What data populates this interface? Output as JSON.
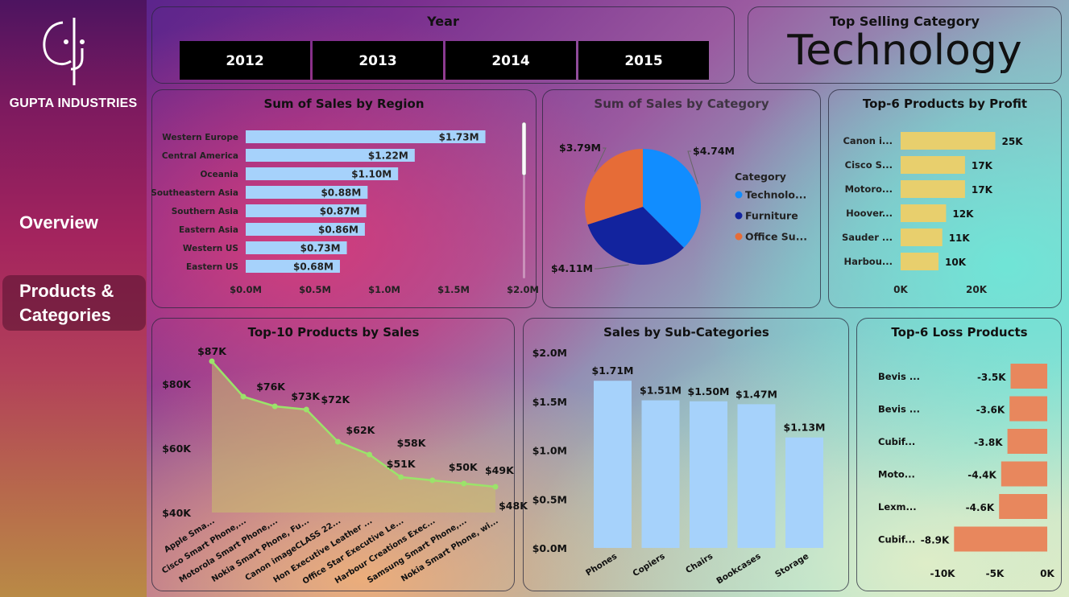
{
  "sidebar": {
    "brand": "GUPTA INDUSTRIES",
    "nav": [
      {
        "label": "Overview"
      },
      {
        "label_line1": "Products &",
        "label_line2": "Categories"
      }
    ]
  },
  "year_slicer": {
    "title": "Year",
    "years": [
      "2012",
      "2013",
      "2014",
      "2015"
    ]
  },
  "top_category": {
    "title": "Top Selling Category",
    "value": "Technology"
  },
  "colors": {
    "bar_light_blue": "#a6d2fb",
    "pie_technology": "#118dff",
    "pie_furniture": "#12239e",
    "pie_office": "#e66c37",
    "profit_yellow": "#e8cf6d",
    "loss_orange": "#e8875d",
    "line_green": "#9be36a"
  },
  "chart_data": [
    {
      "id": "sales_by_region",
      "type": "bar",
      "orientation": "horizontal",
      "title": "Sum of Sales by Region",
      "categories": [
        "Western Europe",
        "Central America",
        "Oceania",
        "Southeastern Asia",
        "Southern Asia",
        "Eastern Asia",
        "Western US",
        "Eastern US"
      ],
      "values": [
        1.73,
        1.22,
        1.1,
        0.88,
        0.87,
        0.86,
        0.73,
        0.68
      ],
      "labels": [
        "$1.73M",
        "$1.22M",
        "$1.10M",
        "$0.88M",
        "$0.87M",
        "$0.86M",
        "$0.73M",
        "$0.68M"
      ],
      "xlim": [
        0,
        2.0
      ],
      "xticks": [
        "$0.0M",
        "$0.5M",
        "$1.0M",
        "$1.5M",
        "$2.0M"
      ]
    },
    {
      "id": "sales_by_category",
      "type": "pie",
      "title": "Sum of Sales by Category",
      "legend_title": "Category",
      "legend_position": "right",
      "categories": [
        "Technolo...",
        "Furniture",
        "Office Su..."
      ],
      "values": [
        4.74,
        4.11,
        3.79
      ],
      "labels": [
        "$4.74M",
        "$4.11M",
        "$3.79M"
      ]
    },
    {
      "id": "top6_profit",
      "type": "bar",
      "orientation": "horizontal",
      "title": "Top-6 Products by Profit",
      "categories": [
        "Canon i...",
        "Cisco S...",
        "Motoro...",
        "Hoover...",
        "Sauder ...",
        "Harbou..."
      ],
      "values": [
        25,
        17,
        17,
        12,
        11,
        10
      ],
      "labels": [
        "25K",
        "17K",
        "17K",
        "12K",
        "11K",
        "10K"
      ],
      "xticks": [
        "0K",
        "20K"
      ]
    },
    {
      "id": "top10_sales",
      "type": "area",
      "title": "Top-10 Products by Sales",
      "categories": [
        "Apple Sma...",
        "Cisco Smart Phone,...",
        "Motorola Smart Phone,...",
        "Nokia Smart Phone, Fu...",
        "Canon imageCLASS 22...",
        "Hon Executive Leather ...",
        "Office Star Executive Le...",
        "Harbour Creations Exec...",
        "Samsung Smart Phone,...",
        "Nokia Smart Phone, wi..."
      ],
      "values": [
        87,
        76,
        73,
        72,
        62,
        58,
        51,
        50,
        49,
        48
      ],
      "labels": [
        "$87K",
        "$76K",
        "$73K",
        "$72K",
        "$62K",
        "$58K",
        "$51K",
        "$50K",
        "$49K",
        "$48K"
      ],
      "ylim": [
        40,
        90
      ],
      "yticks": [
        "$40K",
        "$60K",
        "$80K"
      ]
    },
    {
      "id": "sales_by_subcategory",
      "type": "bar",
      "orientation": "vertical",
      "title": "Sales by Sub-Categories",
      "categories": [
        "Phones",
        "Copiers",
        "Chairs",
        "Bookcases",
        "Storage"
      ],
      "values": [
        1.71,
        1.51,
        1.5,
        1.47,
        1.13
      ],
      "labels": [
        "$1.71M",
        "$1.51M",
        "$1.50M",
        "$1.47M",
        "$1.13M"
      ],
      "ylim": [
        0,
        2.0
      ],
      "yticks": [
        "$0.0M",
        "$0.5M",
        "$1.0M",
        "$1.5M",
        "$2.0M"
      ]
    },
    {
      "id": "top6_loss",
      "type": "bar",
      "orientation": "horizontal",
      "title": "Top-6 Loss Products",
      "categories": [
        "Bevis ...",
        "Bevis ...",
        "Cubif...",
        "Moto...",
        "Lexm...",
        "Cubif..."
      ],
      "values": [
        -3.5,
        -3.6,
        -3.8,
        -4.4,
        -4.6,
        -8.9
      ],
      "labels": [
        "-3.5K",
        "-3.6K",
        "-3.8K",
        "-4.4K",
        "-4.6K",
        "-8.9K"
      ],
      "xlim": [
        -10,
        0
      ],
      "xticks": [
        "-10K",
        "-5K",
        "0K"
      ]
    }
  ]
}
